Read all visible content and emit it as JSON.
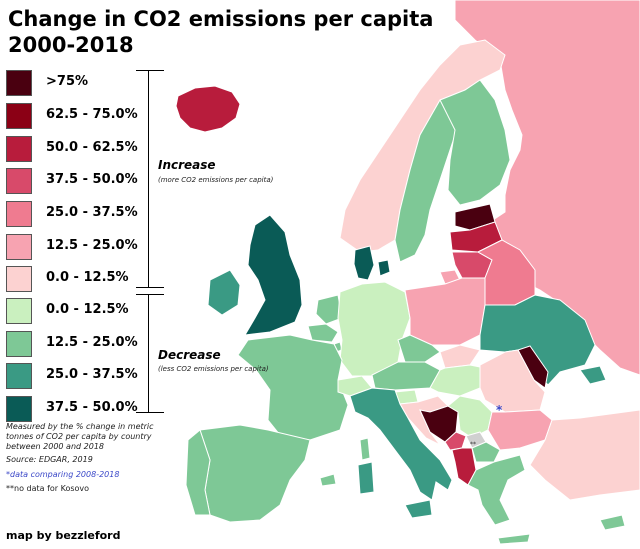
{
  "title_line1": "Change in CO2 emissions per capita",
  "title_line2": "2000-2018",
  "colors": {
    "sea": "#ffffff",
    "nodata": "#d0d0d0",
    "asterisk": "#3b48c8"
  },
  "legend": [
    {
      "label": ">75%",
      "color": "#4a0010"
    },
    {
      "label": "62.5 - 75.0%",
      "color": "#8b0015"
    },
    {
      "label": "50.0 - 62.5%",
      "color": "#b81c3c"
    },
    {
      "label": "37.5 - 50.0%",
      "color": "#d84a6a"
    },
    {
      "label": "25.0 - 37.5%",
      "color": "#ef7b90"
    },
    {
      "label": "12.5 - 25.0%",
      "color": "#f7a3b1"
    },
    {
      "label": "0.0 - 12.5%",
      "color": "#fcd2d1"
    },
    {
      "label": "0.0 - 12.5%",
      "color": "#caf0bf"
    },
    {
      "label": "12.5 - 25.0%",
      "color": "#7ec896"
    },
    {
      "label": "25.0 - 37.5%",
      "color": "#3a9a84"
    },
    {
      "label": "37.5 - 50.0%",
      "color": "#0a5b56"
    }
  ],
  "increase": {
    "title": "Increase",
    "subtitle": "(more CO2 emissions per capita)"
  },
  "decrease": {
    "title": "Decrease",
    "subtitle": "(less CO2 emissions per capita)"
  },
  "notes": {
    "measured": "Measured by the % change in metric tonnes of CO2 per capita by country between 2000 and 2018",
    "source": "Source: EDGAR, 2019",
    "asterisk_note": "*data comparing 2008-2018",
    "kosovo_note": "**no data for Kosovo"
  },
  "credit": "map by bezzleford",
  "map": {
    "asterisk": "*",
    "kosovo_mark": "**",
    "countries": [
      {
        "name": "Russia",
        "category": 5
      },
      {
        "name": "Iceland",
        "category": 2
      },
      {
        "name": "Norway",
        "category": 6
      },
      {
        "name": "Sweden",
        "category": 8
      },
      {
        "name": "Finland",
        "category": 8
      },
      {
        "name": "Estonia",
        "category": 0
      },
      {
        "name": "Latvia",
        "category": 2
      },
      {
        "name": "Lithuania",
        "category": 3
      },
      {
        "name": "Belarus",
        "category": 4
      },
      {
        "name": "Ireland",
        "category": 9
      },
      {
        "name": "United Kingdom",
        "category": 10
      },
      {
        "name": "Denmark",
        "category": 10
      },
      {
        "name": "Netherlands",
        "category": 8
      },
      {
        "name": "Belgium",
        "category": 8
      },
      {
        "name": "Luxembourg",
        "category": 8
      },
      {
        "name": "Germany",
        "category": 7
      },
      {
        "name": "Poland",
        "category": 5
      },
      {
        "name": "Czechia",
        "category": 8
      },
      {
        "name": "Slovakia",
        "category": 6
      },
      {
        "name": "Ukraine",
        "category": 9
      },
      {
        "name": "Moldova",
        "category": 0
      },
      {
        "name": "France",
        "category": 8
      },
      {
        "name": "Switzerland",
        "category": 7
      },
      {
        "name": "Austria",
        "category": 8
      },
      {
        "name": "Hungary",
        "category": 7
      },
      {
        "name": "Romania",
        "category": 6
      },
      {
        "name": "Slovenia",
        "category": 7
      },
      {
        "name": "Croatia",
        "category": 6
      },
      {
        "name": "Bosnia and Herzegovina",
        "category": 0
      },
      {
        "name": "Serbia",
        "category": 7
      },
      {
        "name": "Kosovo",
        "category": 11
      },
      {
        "name": "Montenegro",
        "category": 3
      },
      {
        "name": "Albania",
        "category": 2
      },
      {
        "name": "North Macedonia",
        "category": 8
      },
      {
        "name": "Bulgaria",
        "category": 5
      },
      {
        "name": "Greece",
        "category": 8
      },
      {
        "name": "Italy",
        "category": 9
      },
      {
        "name": "Spain",
        "category": 8
      },
      {
        "name": "Portugal",
        "category": 8
      },
      {
        "name": "Turkey",
        "category": 6
      },
      {
        "name": "Cyprus",
        "category": 8
      }
    ]
  }
}
